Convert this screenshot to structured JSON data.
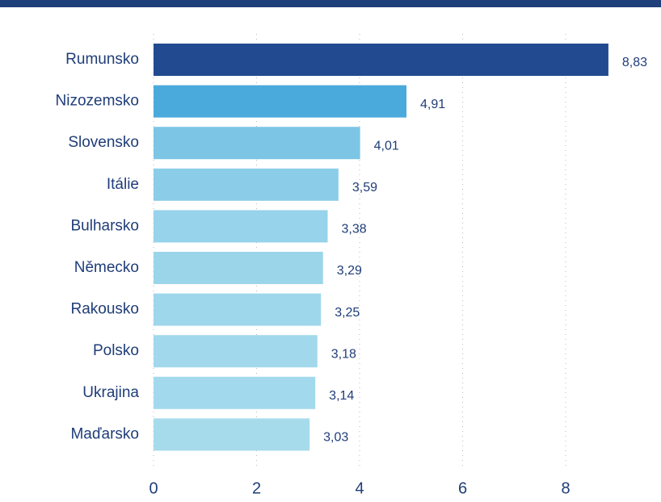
{
  "chart_data": {
    "type": "barh",
    "categories": [
      "Rumunsko",
      "Nizozemsko",
      "Slovensko",
      "Itálie",
      "Bulharsko",
      "Německo",
      "Rakousko",
      "Polsko",
      "Ukrajina",
      "Maďarsko"
    ],
    "values": [
      8.83,
      4.91,
      4.01,
      3.59,
      3.38,
      3.29,
      3.25,
      3.18,
      3.14,
      3.03
    ],
    "value_labels": [
      "8,83",
      "4,91",
      "4,01",
      "3,59",
      "3,38",
      "3,29",
      "3,25",
      "3,18",
      "3,14",
      "3,03"
    ],
    "colors": [
      "#224a90",
      "#4aaadc",
      "#7cc5e5",
      "#8bcde8",
      "#97d3ea",
      "#9bd5ea",
      "#9ed7eb",
      "#a1d8eb",
      "#a3d9ec",
      "#a6dbec"
    ],
    "xlim": [
      0,
      9.7
    ],
    "xticks": [
      0,
      2,
      4,
      6,
      8
    ],
    "grid": true
  }
}
